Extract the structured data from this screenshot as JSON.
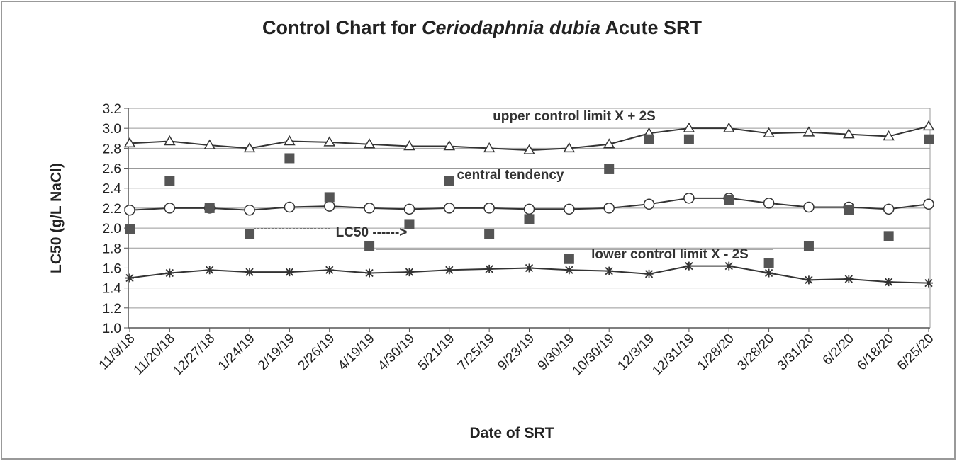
{
  "chart_data": {
    "type": "line",
    "title_parts": [
      "Control Chart for",
      "Ceriodaphnia dubia",
      "Acute SRT"
    ],
    "x_label": "Date of SRT",
    "y_label": "LC50 (g/L NaCl)",
    "categories": [
      "11/9/18",
      "11/20/18",
      "12/27/18",
      "1/24/19",
      "2/19/19",
      "2/26/19",
      "4/19/19",
      "4/30/19",
      "5/21/19",
      "7/25/19",
      "9/23/19",
      "9/30/19",
      "10/30/19",
      "12/3/19",
      "12/31/19",
      "1/28/20",
      "3/28/20",
      "3/31/20",
      "6/2/20",
      "6/18/20",
      "6/25/20"
    ],
    "series": [
      {
        "color": "#333333",
        "marker": "triangle",
        "line": true,
        "values": [
          2.85,
          2.87,
          2.83,
          2.8,
          2.87,
          2.86,
          2.84,
          2.82,
          2.82,
          2.8,
          2.78,
          2.8,
          2.84,
          2.95,
          3.0,
          3.0,
          2.95,
          2.96,
          2.94,
          2.92,
          3.02
        ]
      },
      {
        "color": "#333333",
        "marker": "circle",
        "line": true,
        "values": [
          2.18,
          2.2,
          2.2,
          2.18,
          2.21,
          2.22,
          2.2,
          2.19,
          2.2,
          2.2,
          2.19,
          2.19,
          2.2,
          2.24,
          2.3,
          2.3,
          2.25,
          2.21,
          2.21,
          2.19,
          2.24
        ]
      },
      {
        "color": "#333333",
        "marker": "asterisk",
        "line": true,
        "values": [
          1.5,
          1.55,
          1.58,
          1.56,
          1.56,
          1.58,
          1.55,
          1.56,
          1.58,
          1.59,
          1.6,
          1.58,
          1.57,
          1.54,
          1.62,
          1.62,
          1.55,
          1.48,
          1.49,
          1.46,
          1.45
        ]
      },
      {
        "color": "#555555",
        "marker": "square",
        "line": false,
        "values": [
          1.99,
          2.47,
          2.2,
          1.94,
          2.7,
          2.31,
          1.82,
          2.04,
          2.47,
          1.94,
          2.09,
          1.69,
          2.59,
          2.89,
          2.89,
          2.28,
          1.65,
          1.82,
          2.18,
          1.92,
          2.89
        ]
      }
    ],
    "annotations": [
      "upper control limit X + 2S",
      "central tendency",
      "LC50 ------>",
      "lower control limit X - 2S"
    ],
    "ylim": [
      1.0,
      3.2
    ],
    "yticks": [
      {
        "value": 1.0,
        "label": "1.0"
      },
      1.2,
      1.4,
      1.6,
      1.8,
      {
        "value": 2.0,
        "label": "2.0"
      },
      2.2,
      2.4,
      2.6,
      2.8,
      {
        "value": 3.0,
        "label": "3.0"
      },
      3.2
    ],
    "grid": true
  }
}
